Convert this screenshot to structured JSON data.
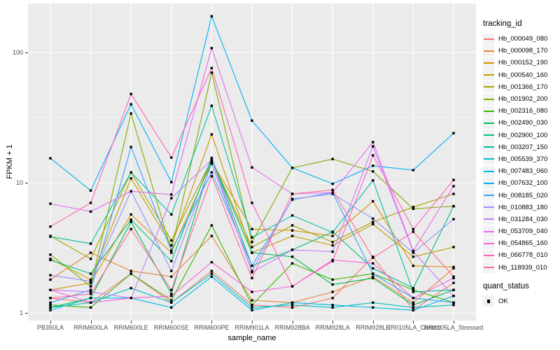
{
  "panel": {
    "background": "#EBEBEB",
    "grid_color": "#FFFFFF",
    "tick_color": "#333333",
    "tick_label_color": "#4D4D4D"
  },
  "legend": {
    "tracking_title": "tracking_id",
    "quant_title": "quant_status",
    "key_background": "#F2F2F2",
    "quant_items": [
      {
        "label": "OK",
        "shape": "filled-square",
        "color": "#000000"
      }
    ]
  },
  "chart_data": {
    "type": "line",
    "title": "",
    "xlabel": "sample_name",
    "ylabel": "FPKM + 1",
    "y_scale": "log10",
    "ylim": [
      0.9,
      240
    ],
    "y_ticks": [
      1,
      10,
      100
    ],
    "y_minor_ticks": [
      3.1623,
      31.6228
    ],
    "grid": true,
    "legend_position": "right",
    "point_shape": "filled-square",
    "point_color": "#000000",
    "categories": [
      "PB350LA",
      "RRIM600LA",
      "RRIM600LE",
      "RRIM600SE",
      "RRIM600PE",
      "RRIM901LA",
      "RRIM928BA",
      "RRIM928LA",
      "RRIM928LE",
      "RRII105LA_Control",
      "RRII105LA_Stressed"
    ],
    "series": [
      {
        "name": "Hb_000049_080",
        "color": "#F8766D",
        "values": [
          1.3,
          1.2,
          2.0,
          1.2,
          2.1,
          1.15,
          1.1,
          1.3,
          2.7,
          1.05,
          1.7
        ]
      },
      {
        "name": "Hb_000098_170",
        "color": "#EA8331",
        "values": [
          1.8,
          2.9,
          2.1,
          1.9,
          3.9,
          1.25,
          1.2,
          1.45,
          1.9,
          1.2,
          2.2
        ]
      },
      {
        "name": "Hb_000152_190",
        "color": "#D89000",
        "values": [
          1.5,
          1.7,
          5.7,
          2.9,
          14.5,
          4.4,
          4.3,
          3.9,
          7.2,
          2.3,
          2.25
        ]
      },
      {
        "name": "Hb_000540_160",
        "color": "#C09B00",
        "values": [
          2.6,
          1.8,
          10.8,
          3.3,
          23.5,
          2.9,
          3.9,
          3.3,
          4.8,
          2.7,
          3.2
        ]
      },
      {
        "name": "Hb_001366_170",
        "color": "#A3A500",
        "values": [
          3.9,
          2.6,
          12.0,
          3.6,
          15.0,
          3.2,
          4.7,
          3.5,
          5.0,
          6.5,
          8.2
        ]
      },
      {
        "name": "Hb_001902_200",
        "color": "#7CAE00",
        "values": [
          2.8,
          1.6,
          34.0,
          3.0,
          70.0,
          3.5,
          13.0,
          15.2,
          12.2,
          6.3,
          6.6
        ]
      },
      {
        "name": "Hb_002316_080",
        "color": "#39B600",
        "values": [
          1.15,
          1.1,
          2.0,
          1.25,
          4.7,
          1.15,
          2.4,
          1.8,
          2.0,
          1.5,
          1.2
        ]
      },
      {
        "name": "Hb_002490_030",
        "color": "#00BB4E",
        "values": [
          1.1,
          1.3,
          5.0,
          1.4,
          15.0,
          2.9,
          2.7,
          1.65,
          1.85,
          1.15,
          1.5
        ]
      },
      {
        "name": "Hb_002900_100",
        "color": "#00BF7D",
        "values": [
          2.55,
          2.0,
          5.2,
          2.5,
          15.5,
          2.3,
          3.05,
          4.2,
          2.2,
          1.55,
          6.6
        ]
      },
      {
        "name": "Hb_003207_150",
        "color": "#00C1A3",
        "values": [
          3.85,
          3.4,
          12.0,
          5.7,
          39.0,
          3.8,
          5.6,
          4.15,
          10.4,
          1.45,
          1.5
        ]
      },
      {
        "name": "Hb_005539_370",
        "color": "#00BFC4",
        "values": [
          1.1,
          1.2,
          1.55,
          1.2,
          2.0,
          1.1,
          1.15,
          1.1,
          1.2,
          1.1,
          1.15
        ]
      },
      {
        "name": "Hb_007483_060",
        "color": "#00BAE0",
        "values": [
          1.05,
          1.3,
          1.3,
          1.1,
          1.9,
          1.05,
          1.2,
          1.15,
          1.1,
          1.05,
          1.35
        ]
      },
      {
        "name": "Hb_007632_100",
        "color": "#00B0F6",
        "values": [
          15.4,
          8.7,
          40.0,
          10.1,
          190.0,
          30.0,
          13.0,
          9.8,
          13.5,
          12.5,
          24.0
        ]
      },
      {
        "name": "Hb_008185_020",
        "color": "#35A2FF",
        "values": [
          1.2,
          1.5,
          18.8,
          3.0,
          12.0,
          2.3,
          7.4,
          8.4,
          2.0,
          1.3,
          1.2
        ]
      },
      {
        "name": "Hb_010883_180",
        "color": "#9590FF",
        "values": [
          1.95,
          1.75,
          8.6,
          2.1,
          14.0,
          2.1,
          7.5,
          8.2,
          5.3,
          2.9,
          5.25
        ]
      },
      {
        "name": "Hb_031284_030",
        "color": "#C77CFF",
        "values": [
          1.5,
          1.45,
          1.3,
          7.6,
          15.0,
          2.05,
          3.05,
          2.95,
          19.0,
          2.95,
          1.35
        ]
      },
      {
        "name": "Hb_053709_040",
        "color": "#E76BF3",
        "values": [
          6.9,
          6.0,
          8.6,
          8.1,
          108.0,
          13.1,
          8.2,
          8.4,
          20.5,
          3.0,
          9.4
        ]
      },
      {
        "name": "Hb_054865_160",
        "color": "#FA62DB",
        "values": [
          1.5,
          1.2,
          1.3,
          1.35,
          2.45,
          1.45,
          1.6,
          2.55,
          2.4,
          1.3,
          1.85
        ]
      },
      {
        "name": "Hb_066778_010",
        "color": "#FF62BC",
        "values": [
          4.6,
          7.0,
          48.0,
          15.6,
          76.0,
          7.0,
          1.6,
          2.5,
          16.2,
          4.4,
          10.5
        ]
      },
      {
        "name": "Hb_118939_010",
        "color": "#FF6A98",
        "values": [
          1.3,
          1.4,
          4.4,
          1.5,
          11.2,
          1.85,
          8.2,
          8.8,
          2.65,
          4.2,
          1.9
        ]
      }
    ]
  }
}
